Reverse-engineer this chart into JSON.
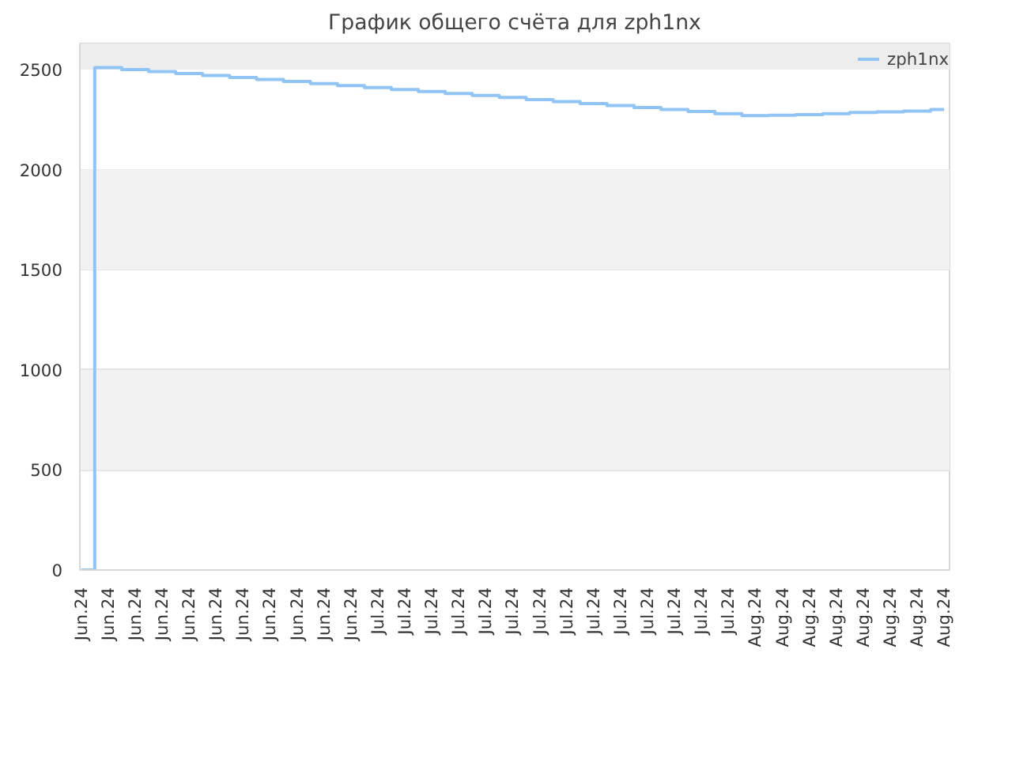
{
  "chart_data": {
    "type": "step",
    "title": "График общего счёта для zph1nx",
    "categories": [
      "Jun.24",
      "Jun.24",
      "Jun.24",
      "Jun.24",
      "Jun.24",
      "Jun.24",
      "Jun.24",
      "Jun.24",
      "Jun.24",
      "Jun.24",
      "Jun.24",
      "Jul.24",
      "Jul.24",
      "Jul.24",
      "Jul.24",
      "Jul.24",
      "Jul.24",
      "Jul.24",
      "Jul.24",
      "Jul.24",
      "Jul.24",
      "Jul.24",
      "Jul.24",
      "Jul.24",
      "Jul.24",
      "Aug.24",
      "Aug.24",
      "Aug.24",
      "Aug.24",
      "Aug.24",
      "Aug.24",
      "Aug.24",
      "Aug.24"
    ],
    "series": [
      {
        "name": "zph1nx",
        "color": "#90c4f4",
        "values": [
          0,
          2510,
          2500,
          2490,
          2480,
          2470,
          2460,
          2450,
          2440,
          2430,
          2420,
          2410,
          2400,
          2390,
          2380,
          2370,
          2360,
          2350,
          2340,
          2330,
          2320,
          2310,
          2300,
          2290,
          2280,
          2270,
          2272,
          2275,
          2280,
          2285,
          2288,
          2292,
          2300
        ]
      }
    ],
    "ylim": [
      0,
      2630
    ],
    "yticks": [
      0,
      500,
      1000,
      1500,
      2000,
      2500
    ],
    "grid": "y",
    "legend": "top right",
    "bands": [
      {
        "axis": "y",
        "from": 500,
        "to": 1000,
        "color": "#f2f2f2"
      },
      {
        "axis": "y",
        "from": 1500,
        "to": 2000,
        "color": "#f2f2f2"
      },
      {
        "axis": "y",
        "from": 2500,
        "to": 2630,
        "color": "#ededed"
      }
    ]
  }
}
